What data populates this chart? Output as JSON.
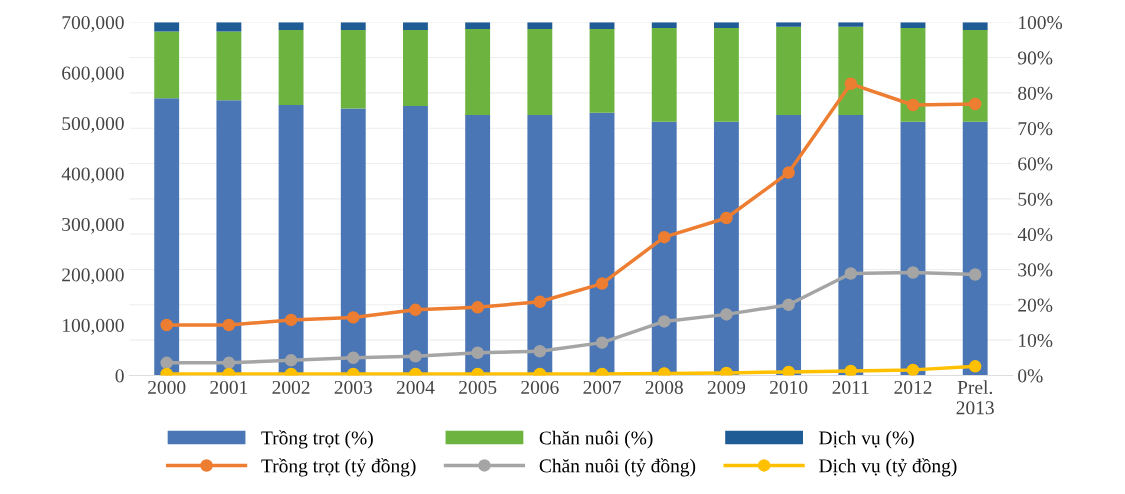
{
  "chart_data": {
    "type": "bar",
    "stacked": true,
    "categories": [
      "2000",
      "2001",
      "2002",
      "2003",
      "2004",
      "2005",
      "2006",
      "2007",
      "2008",
      "2009",
      "2010",
      "2011",
      "2012",
      "Prel.\n2013"
    ],
    "series": [
      {
        "name": "Trồng trọt (%)",
        "axis": "y2",
        "color": "#4a76b5",
        "values": [
          78.5,
          77.9,
          76.6,
          75.6,
          76.3,
          73.7,
          73.7,
          74.4,
          71.8,
          71.8,
          73.7,
          73.7,
          71.8,
          71.8
        ]
      },
      {
        "name": "Chăn nuôi (%)",
        "axis": "y2",
        "color": "#6db33f",
        "values": [
          18.9,
          19.5,
          21.2,
          22.2,
          21.5,
          24.4,
          24.4,
          23.7,
          26.6,
          26.6,
          25.0,
          25.0,
          26.6,
          26.0
        ]
      },
      {
        "name": "Dịch vụ (%)",
        "axis": "y2",
        "color": "#1f5b94",
        "values": [
          2.6,
          2.6,
          2.2,
          2.2,
          2.2,
          1.9,
          1.9,
          1.9,
          1.6,
          1.6,
          1.3,
          1.3,
          1.6,
          2.2
        ]
      },
      {
        "name": "Trồng trọt (tỷ đồng)",
        "type": "line",
        "color": "#ed7d31",
        "values": [
          100000,
          100000,
          110000,
          115000,
          130000,
          135000,
          146000,
          182000,
          274000,
          312000,
          402000,
          578000,
          536000,
          538000
        ]
      },
      {
        "name": "Chăn nuôi (tỷ đồng)",
        "type": "line",
        "color": "#a5a5a5",
        "values": [
          25000,
          25000,
          30000,
          35000,
          38000,
          45000,
          48000,
          65000,
          107000,
          121000,
          140000,
          202000,
          204000,
          200000
        ]
      },
      {
        "name": "Dịch vụ (tỷ đồng)",
        "type": "line",
        "color": "#ffc000",
        "values": [
          3000,
          3000,
          3000,
          3000,
          3000,
          3000,
          3000,
          3000,
          4000,
          5000,
          7000,
          9000,
          11000,
          18000
        ]
      }
    ],
    "ylim": [
      0,
      700000
    ],
    "yticks": [
      {
        "value": 0,
        "label": "0"
      },
      {
        "value": 100000,
        "label": "100,000"
      },
      {
        "value": 200000,
        "label": "200,000"
      },
      {
        "value": 300000,
        "label": "300,000"
      },
      {
        "value": 400000,
        "label": "400,000"
      },
      {
        "value": 500000,
        "label": "500,000"
      },
      {
        "value": 600000,
        "label": "600,000"
      },
      {
        "value": 700000,
        "label": "700,000"
      }
    ],
    "y2lim": [
      0,
      100
    ],
    "y2ticks": [
      {
        "value": 0,
        "label": "0%"
      },
      {
        "value": 10,
        "label": "10%"
      },
      {
        "value": 20,
        "label": "20%"
      },
      {
        "value": 30,
        "label": "30%"
      },
      {
        "value": 40,
        "label": "40%"
      },
      {
        "value": 50,
        "label": "50%"
      },
      {
        "value": 60,
        "label": "60%"
      },
      {
        "value": 70,
        "label": "70%"
      },
      {
        "value": 80,
        "label": "80%"
      },
      {
        "value": 90,
        "label": "90%"
      },
      {
        "value": 100,
        "label": "100%"
      }
    ],
    "grid": "y",
    "legend": "bottom",
    "marker": "circle"
  }
}
